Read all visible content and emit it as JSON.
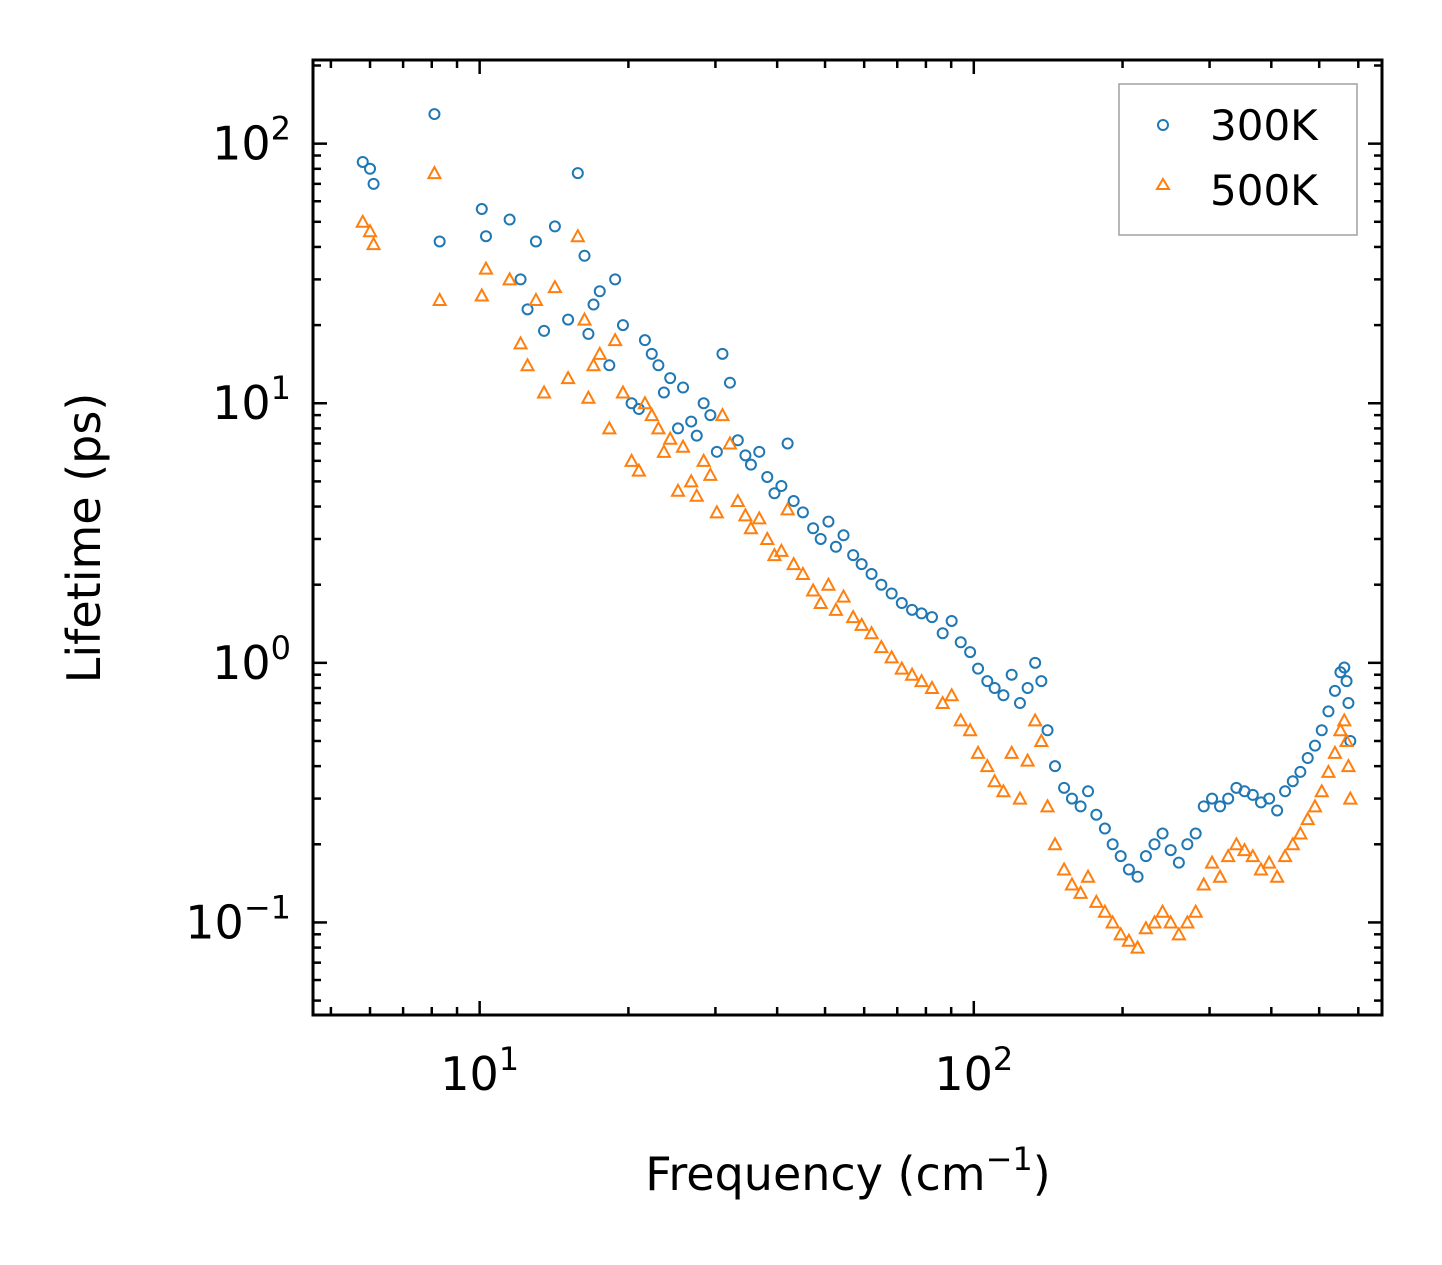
{
  "chart_data": {
    "type": "scatter",
    "title": "",
    "xlabel": "Frequency (cm",
    "xlabel_sup": "−1",
    "xlabel_suffix": ")",
    "ylabel": "Lifetime (ps)",
    "xscale": "log",
    "yscale": "log",
    "xlim": [
      4.6,
      670
    ],
    "ylim": [
      0.044,
      210
    ],
    "x_ticks": [
      {
        "value": 10,
        "base": "10",
        "exp": "1"
      },
      {
        "value": 100,
        "base": "10",
        "exp": "2"
      }
    ],
    "y_ticks": [
      {
        "value": 0.1,
        "base": "10",
        "exp": "−1"
      },
      {
        "value": 1,
        "base": "10",
        "exp": "0"
      },
      {
        "value": 10,
        "base": "10",
        "exp": "1"
      },
      {
        "value": 100,
        "base": "10",
        "exp": "2"
      }
    ],
    "legend_position": "top-right",
    "series": [
      {
        "name": "300K",
        "marker": "circle-open",
        "color": "#1f77b4",
        "x": [
          5.8,
          6.0,
          6.1,
          8.1,
          8.3,
          10.1,
          10.3,
          11.5,
          12.1,
          12.5,
          13.0,
          13.5,
          14.2,
          15.1,
          15.8,
          16.3,
          16.6,
          17.0,
          17.5,
          18.3,
          18.8,
          19.5,
          20.3,
          21.0,
          21.6,
          22.3,
          23.0,
          23.6,
          24.3,
          25.2,
          25.8,
          26.8,
          27.5,
          28.4,
          29.3,
          30.2,
          31.0,
          32.1,
          33.3,
          34.5,
          35.4,
          36.8,
          38.2,
          39.5,
          40.8,
          42.0,
          43.2,
          45.1,
          47.3,
          49.0,
          50.8,
          52.6,
          54.5,
          57.0,
          59.3,
          62.1,
          65.0,
          68.2,
          71.5,
          75.0,
          78.4,
          82.3,
          86.5,
          90.2,
          94.1,
          98.3,
          102.0,
          106.5,
          110.2,
          114.8,
          119.3,
          124.0,
          128.5,
          133.1,
          137.0,
          141.0,
          146.0,
          152.3,
          158.0,
          164.5,
          170.3,
          177.0,
          184.2,
          191.0,
          198.3,
          206.0,
          214.5,
          223.0,
          232.1,
          241.0,
          250.3,
          260.0,
          270.5,
          281.2,
          292.0,
          303.5,
          315.0,
          327.2,
          340.0,
          353.1,
          367.0,
          381.2,
          396.0,
          411.0,
          426.5,
          442.1,
          458.0,
          474.0,
          490.3,
          506.0,
          522.0,
          538.1,
          552.0,
          562.0,
          568.0,
          573.0,
          578.0
        ],
        "y": [
          85,
          80,
          70,
          130,
          42,
          56,
          44,
          51,
          30,
          23,
          42,
          19,
          48,
          21,
          77,
          37,
          18.5,
          24,
          27,
          14,
          30,
          20,
          10,
          9.5,
          17.5,
          15.5,
          14,
          11,
          12.5,
          8,
          11.5,
          8.5,
          7.5,
          10,
          9,
          6.5,
          15.5,
          12,
          7.2,
          6.3,
          5.8,
          6.5,
          5.2,
          4.5,
          4.8,
          7.0,
          4.2,
          3.8,
          3.3,
          3.0,
          3.5,
          2.8,
          3.1,
          2.6,
          2.4,
          2.2,
          2.0,
          1.85,
          1.7,
          1.6,
          1.55,
          1.5,
          1.3,
          1.45,
          1.2,
          1.1,
          0.95,
          0.85,
          0.8,
          0.75,
          0.9,
          0.7,
          0.8,
          1.0,
          0.85,
          0.55,
          0.4,
          0.33,
          0.3,
          0.28,
          0.32,
          0.26,
          0.23,
          0.2,
          0.18,
          0.16,
          0.15,
          0.18,
          0.2,
          0.22,
          0.19,
          0.17,
          0.2,
          0.22,
          0.28,
          0.3,
          0.28,
          0.3,
          0.33,
          0.32,
          0.31,
          0.29,
          0.3,
          0.27,
          0.32,
          0.35,
          0.38,
          0.43,
          0.48,
          0.55,
          0.65,
          0.78,
          0.92,
          0.96,
          0.85,
          0.7,
          0.5
        ]
      },
      {
        "name": "500K",
        "marker": "triangle-open",
        "color": "#ff7f0e",
        "x": [
          5.8,
          6.0,
          6.1,
          8.1,
          8.3,
          10.1,
          10.3,
          11.5,
          12.1,
          12.5,
          13.0,
          13.5,
          14.2,
          15.1,
          15.8,
          16.3,
          16.6,
          17.0,
          17.5,
          18.3,
          18.8,
          19.5,
          20.3,
          21.0,
          21.6,
          22.3,
          23.0,
          23.6,
          24.3,
          25.2,
          25.8,
          26.8,
          27.5,
          28.4,
          29.3,
          30.2,
          31.0,
          32.1,
          33.3,
          34.5,
          35.4,
          36.8,
          38.2,
          39.5,
          40.8,
          42.0,
          43.2,
          45.1,
          47.3,
          49.0,
          50.8,
          52.6,
          54.5,
          57.0,
          59.3,
          62.1,
          65.0,
          68.2,
          71.5,
          75.0,
          78.4,
          82.3,
          86.5,
          90.2,
          94.1,
          98.3,
          102.0,
          106.5,
          110.2,
          114.8,
          119.3,
          124.0,
          128.5,
          133.1,
          137.0,
          141.0,
          146.0,
          152.3,
          158.0,
          164.5,
          170.3,
          177.0,
          184.2,
          191.0,
          198.3,
          206.0,
          214.5,
          223.0,
          232.1,
          241.0,
          250.3,
          260.0,
          270.5,
          281.2,
          292.0,
          303.5,
          315.0,
          327.2,
          340.0,
          353.1,
          367.0,
          381.2,
          396.0,
          411.0,
          426.5,
          442.1,
          458.0,
          474.0,
          490.3,
          506.0,
          522.0,
          538.1,
          552.0,
          562.0,
          568.0,
          573.0,
          578.0
        ],
        "y": [
          50,
          46,
          41,
          77,
          25,
          26,
          33,
          30,
          17,
          14,
          25,
          11,
          28,
          12.5,
          44,
          21,
          10.5,
          14,
          15.5,
          8,
          17.5,
          11,
          6,
          5.5,
          10,
          9,
          8,
          6.5,
          7.3,
          4.6,
          6.8,
          5,
          4.4,
          6,
          5.3,
          3.8,
          9,
          7,
          4.2,
          3.7,
          3.3,
          3.6,
          3.0,
          2.6,
          2.7,
          3.9,
          2.4,
          2.2,
          1.9,
          1.7,
          2.0,
          1.6,
          1.8,
          1.5,
          1.4,
          1.3,
          1.15,
          1.05,
          0.95,
          0.9,
          0.85,
          0.8,
          0.7,
          0.75,
          0.6,
          0.55,
          0.45,
          0.4,
          0.35,
          0.32,
          0.45,
          0.3,
          0.42,
          0.6,
          0.5,
          0.28,
          0.2,
          0.16,
          0.14,
          0.13,
          0.15,
          0.12,
          0.11,
          0.1,
          0.09,
          0.085,
          0.08,
          0.095,
          0.1,
          0.11,
          0.1,
          0.09,
          0.1,
          0.11,
          0.14,
          0.17,
          0.15,
          0.18,
          0.2,
          0.19,
          0.18,
          0.16,
          0.17,
          0.15,
          0.18,
          0.2,
          0.22,
          0.25,
          0.28,
          0.32,
          0.38,
          0.45,
          0.55,
          0.6,
          0.5,
          0.4,
          0.3
        ]
      }
    ]
  }
}
